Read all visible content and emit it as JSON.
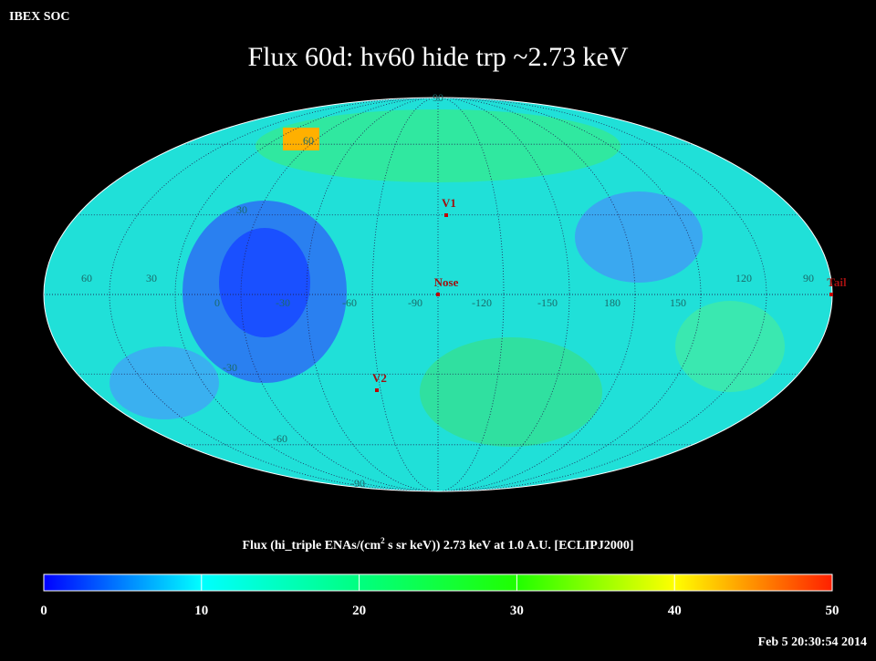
{
  "header": {
    "source": "IBEX SOC",
    "title": "Flux   60d: hv60 hide trp ~2.73 keV",
    "timestamp": "Feb  5 20:30:54 2014"
  },
  "map": {
    "latitude_labels": [
      "90",
      "60",
      "30",
      "-30",
      "-60",
      "-90"
    ],
    "longitude_labels": [
      "60",
      "30",
      "0",
      "-30",
      "-60",
      "-90",
      "-120",
      "-150",
      "180",
      "150",
      "120",
      "90"
    ],
    "markers": [
      "V1",
      "Nose",
      "V2",
      "Tail"
    ]
  },
  "colorbar": {
    "title_start": "Flux (hi_triple ENAs/(cm",
    "title_sup": "2",
    "title_end": " s sr keV))  2.73 keV at 1.0 A.U. [ECLIPJ2000]",
    "lim": [
      0,
      50
    ],
    "ticks": [
      0,
      10,
      20,
      30,
      40,
      50
    ]
  }
}
